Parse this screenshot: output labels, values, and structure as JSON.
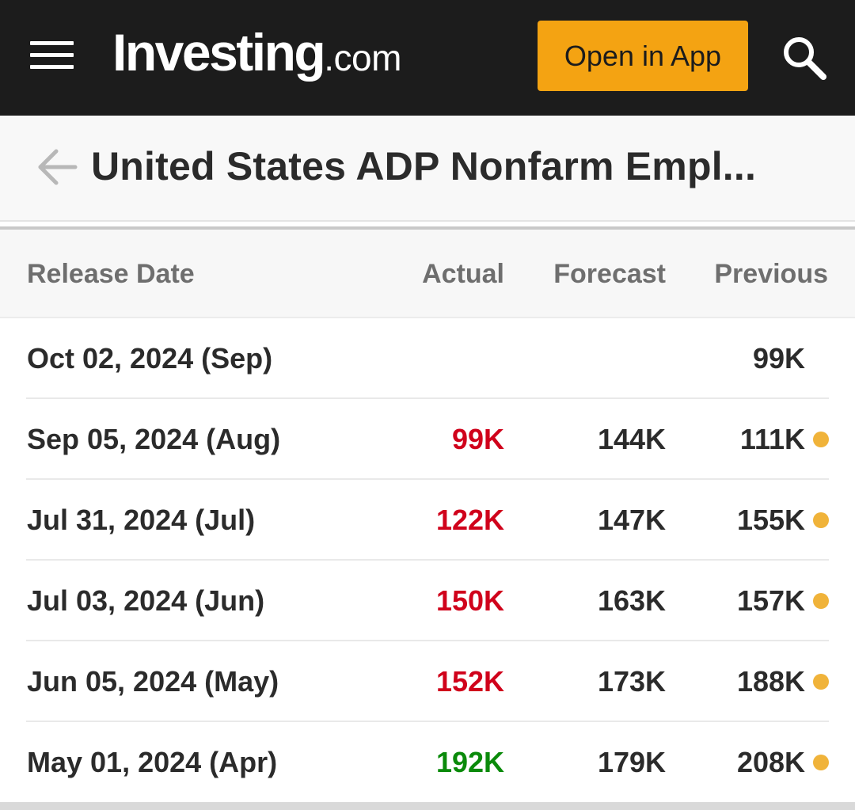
{
  "header": {
    "logo_brand": "Investing",
    "logo_tld": ".com",
    "open_app_label": "Open in App",
    "icons": [
      "menu-icon",
      "search-icon"
    ],
    "background": "#1c1c1c",
    "accent": "#f4a312"
  },
  "page": {
    "title": "United States ADP Nonfarm Empl...",
    "back_icon": "back-arrow-icon"
  },
  "table": {
    "columns": [
      "Release Date",
      "Actual",
      "Forecast",
      "Previous"
    ],
    "rows": [
      {
        "date": "Oct 02, 2024 (Sep)",
        "actual": "",
        "actual_status": "none",
        "forecast": "",
        "previous": "99K",
        "revised": false
      },
      {
        "date": "Sep 05, 2024 (Aug)",
        "actual": "99K",
        "actual_status": "negative",
        "forecast": "144K",
        "previous": "111K",
        "revised": true
      },
      {
        "date": "Jul 31, 2024 (Jul)",
        "actual": "122K",
        "actual_status": "negative",
        "forecast": "147K",
        "previous": "155K",
        "revised": true
      },
      {
        "date": "Jul 03, 2024 (Jun)",
        "actual": "150K",
        "actual_status": "negative",
        "forecast": "163K",
        "previous": "157K",
        "revised": true
      },
      {
        "date": "Jun 05, 2024 (May)",
        "actual": "152K",
        "actual_status": "negative",
        "forecast": "173K",
        "previous": "188K",
        "revised": true
      },
      {
        "date": "May 01, 2024 (Apr)",
        "actual": "192K",
        "actual_status": "positive",
        "forecast": "179K",
        "previous": "208K",
        "revised": true
      }
    ],
    "status_colors": {
      "negative": "#d0021b",
      "positive": "#0a8a0a",
      "revised_dot": "#f0b33a"
    }
  }
}
